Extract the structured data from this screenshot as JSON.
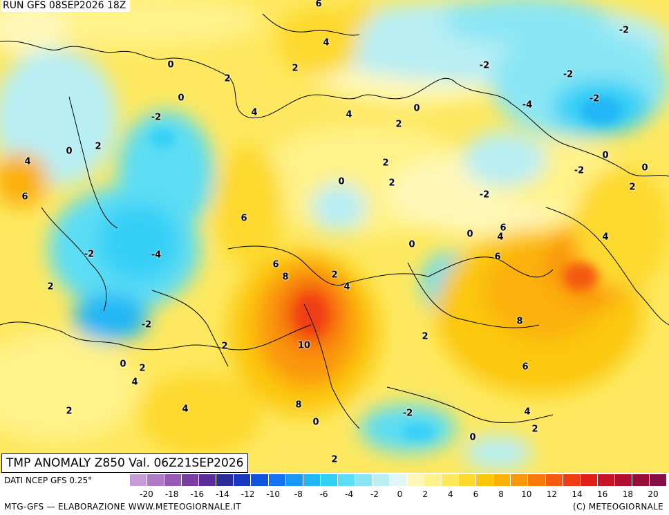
{
  "header": {
    "run": "RUN GFS 08SEP2026 18Z"
  },
  "title": "TMP ANOMALY Z850 Val. 06Z21SEP2026",
  "footer": {
    "data_source": "DATI NCEP GFS 0.25°",
    "credit_left": "MTG-GFS — ELABORAZIONE WWW.METEOGIORNALE.IT",
    "credit_right": "(C) METEOGIORNALE"
  },
  "colorbar": {
    "colors": [
      "#c89ad8",
      "#b07ac8",
      "#9858b6",
      "#7c3ca6",
      "#5c2c9c",
      "#2c2c9c",
      "#1838c2",
      "#1054de",
      "#1274ee",
      "#1a96f4",
      "#22b6f6",
      "#34cff6",
      "#5cddf4",
      "#8ae6f4",
      "#b8eef4",
      "#dff6f4",
      "#fff7b8",
      "#fff289",
      "#fde85f",
      "#fdd92d",
      "#fcc70a",
      "#fbb00a",
      "#fa960c",
      "#f77a0c",
      "#f45a10",
      "#f03c14",
      "#e02018",
      "#c81424",
      "#b0102e",
      "#9a0c38",
      "#880c46"
    ],
    "ticks": [
      "-20",
      "-18",
      "-16",
      "-14",
      "-12",
      "-10",
      "-8",
      "-6",
      "-4",
      "-2",
      "0",
      "2",
      "4",
      "6",
      "8",
      "10",
      "12",
      "14",
      "16",
      "18",
      "20"
    ]
  },
  "map": {
    "colors": {
      "background": "#fde85f",
      "light_yellow": "#fff289",
      "pale": "#fff7b8",
      "cyan_pale": "#b8eef4",
      "cyan": "#8ae6f4",
      "cyan_mid": "#5cddf4",
      "blue": "#34cff6",
      "blue_deep": "#22b6f6",
      "gold": "#fdd92d",
      "amber": "#fcc70a",
      "orange": "#fbb00a",
      "orange_deep": "#fa960c",
      "red": "#f45a10",
      "red_deep": "#f03c14"
    },
    "isoline_labels": [
      {
        "t": "6"
      },
      {
        "t": "4"
      },
      {
        "t": "2"
      },
      {
        "t": "0"
      },
      {
        "t": "2"
      },
      {
        "t": "0"
      },
      {
        "t": "-2"
      },
      {
        "t": "4"
      },
      {
        "t": "4"
      },
      {
        "t": "0"
      },
      {
        "t": "2"
      },
      {
        "t": "2"
      },
      {
        "t": "0"
      },
      {
        "t": "4"
      },
      {
        "t": "6"
      },
      {
        "t": "0"
      },
      {
        "t": "2"
      },
      {
        "t": "6"
      },
      {
        "t": "-2"
      },
      {
        "t": "-4"
      },
      {
        "t": "2"
      },
      {
        "t": "-2"
      },
      {
        "t": "6"
      },
      {
        "t": "8"
      },
      {
        "t": "2"
      },
      {
        "t": "4"
      },
      {
        "t": "10"
      },
      {
        "t": "2"
      },
      {
        "t": "0"
      },
      {
        "t": "2"
      },
      {
        "t": "4"
      },
      {
        "t": "2"
      },
      {
        "t": "4"
      },
      {
        "t": "8"
      },
      {
        "t": "0"
      },
      {
        "t": "2"
      },
      {
        "t": "-2"
      },
      {
        "t": "0"
      },
      {
        "t": "-2"
      },
      {
        "t": "-2"
      },
      {
        "t": "-2"
      },
      {
        "t": "-2"
      },
      {
        "t": "-4"
      },
      {
        "t": "0"
      },
      {
        "t": "-2"
      },
      {
        "t": "0"
      },
      {
        "t": "2"
      },
      {
        "t": "4"
      },
      {
        "t": "-2"
      },
      {
        "t": "0"
      },
      {
        "t": "2"
      },
      {
        "t": "4"
      },
      {
        "t": "6"
      },
      {
        "t": "6"
      },
      {
        "t": "8"
      },
      {
        "t": "6"
      },
      {
        "t": "2"
      },
      {
        "t": "4"
      },
      {
        "t": "2"
      },
      {
        "t": "0"
      },
      {
        "t": "-2"
      }
    ]
  }
}
